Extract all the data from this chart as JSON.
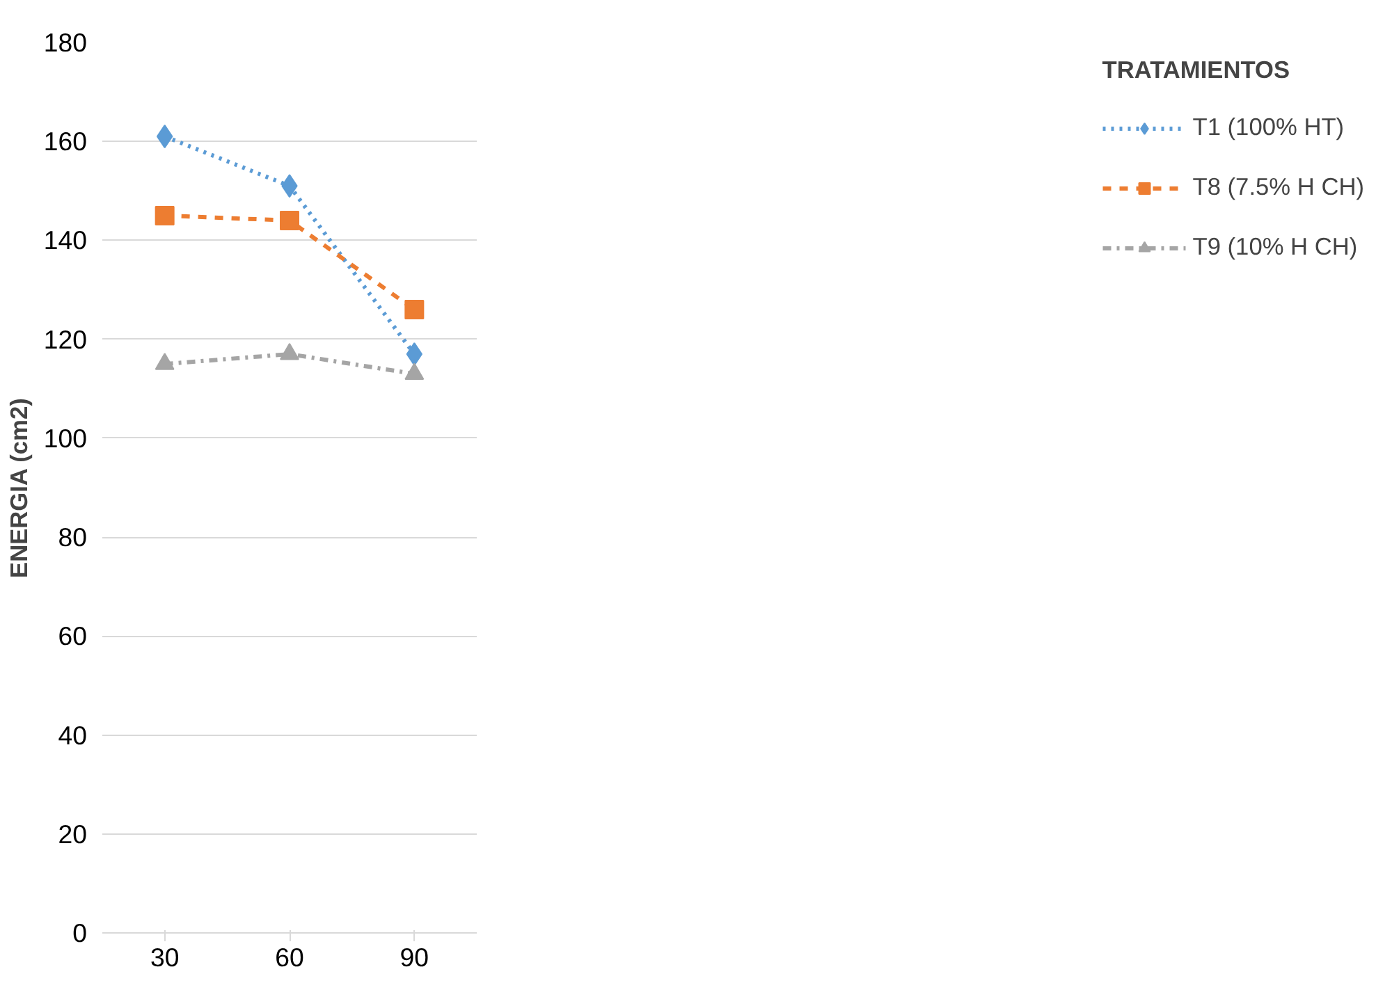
{
  "chart_data": {
    "type": "line",
    "ylabel": "ENERGIA (cm2)",
    "legend_title": "TRATAMIENTOS",
    "categories": [
      "30",
      "60",
      "90"
    ],
    "series": [
      {
        "name": "T1 (100% HT)",
        "color": "#5b9bd5",
        "values": [
          161,
          151,
          117
        ],
        "marker": "diamond",
        "line_style": "dotted"
      },
      {
        "name": "T8 (7.5% H CH)",
        "color": "#ed7d31",
        "values": [
          145,
          144,
          126
        ],
        "marker": "square",
        "line_style": "dashed"
      },
      {
        "name": "T9 (10% H CH)",
        "color": "#a5a5a5",
        "values": [
          115,
          117,
          113
        ],
        "marker": "triangle",
        "line_style": "dashdot"
      }
    ],
    "ylim": [
      0,
      180
    ],
    "yticks": [
      0,
      20,
      40,
      60,
      80,
      100,
      120,
      140,
      160,
      180
    ],
    "grid": "y",
    "legend": "right"
  }
}
